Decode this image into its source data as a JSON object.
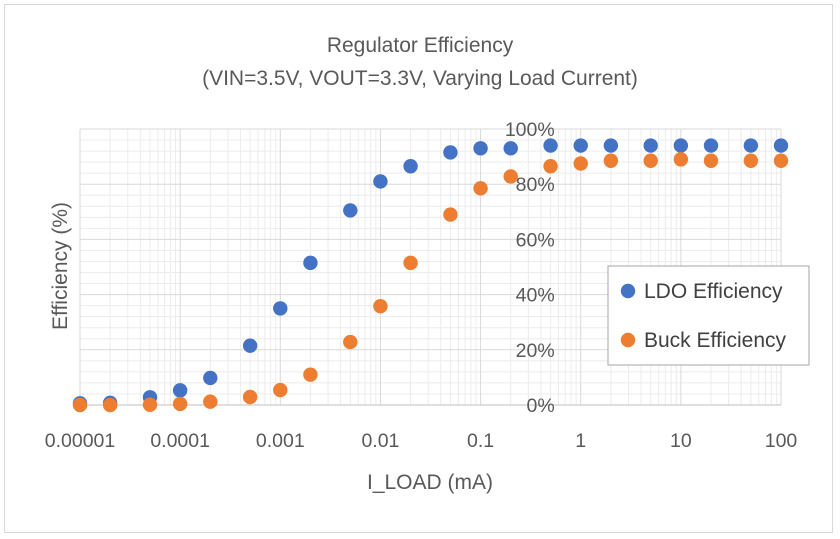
{
  "chart_data": {
    "type": "scatter",
    "title": "Regulator Efficiency",
    "subtitle": "(VIN=3.5V, VOUT=3.3V, Varying Load Current)",
    "xlabel": "I_LOAD (mA)",
    "ylabel": "Efficiency (%)",
    "x_scale": "log",
    "xlim": [
      1e-05,
      100
    ],
    "ylim": [
      0,
      100
    ],
    "x_ticks": [
      "0.00001",
      "0.0001",
      "0.001",
      "0.01",
      "0.1",
      "1",
      "10",
      "100"
    ],
    "y_ticks": [
      "0%",
      "20%",
      "40%",
      "60%",
      "80%",
      "100%"
    ],
    "grid": "major and minor",
    "legend_position": "right",
    "series": [
      {
        "name": "LDO Efficiency",
        "color": "#4472c4",
        "x": [
          1e-05,
          2e-05,
          5e-05,
          0.0001,
          0.0002,
          0.0005,
          0.001,
          0.002,
          0.005,
          0.01,
          0.02,
          0.05,
          0.1,
          0.2,
          0.5,
          1,
          2,
          5,
          10,
          20,
          50,
          100
        ],
        "y": [
          0.6,
          0.8,
          2.8,
          5.3,
          9.8,
          21.5,
          35,
          51.5,
          70.5,
          81,
          86.5,
          91.5,
          93,
          93,
          94,
          94,
          94,
          94,
          94,
          94,
          94,
          94
        ]
      },
      {
        "name": "Buck Efficiency",
        "color": "#ed7d31",
        "x": [
          1e-05,
          2e-05,
          5e-05,
          0.0001,
          0.0002,
          0.0005,
          0.001,
          0.002,
          0.005,
          0.01,
          0.02,
          0.05,
          0.1,
          0.2,
          0.5,
          1,
          2,
          5,
          10,
          20,
          50,
          100
        ],
        "y": [
          0,
          0,
          0.1,
          0.4,
          1.2,
          2.9,
          5.4,
          11,
          22.8,
          35.8,
          51.5,
          69,
          78.5,
          82.8,
          86.5,
          87.5,
          88.5,
          88.5,
          89,
          88.5,
          88.5,
          88.5
        ]
      }
    ]
  }
}
